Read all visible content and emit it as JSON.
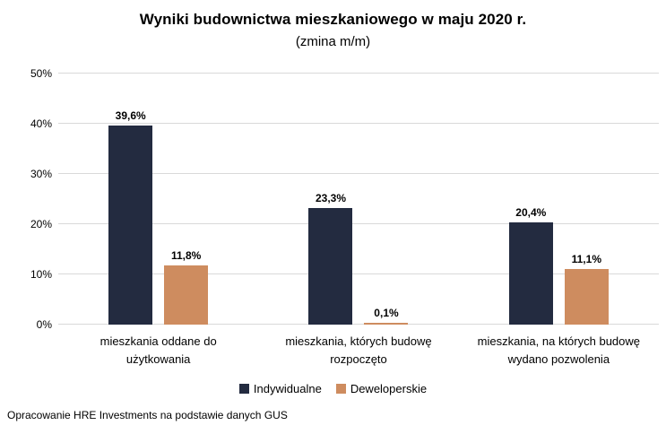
{
  "header": {
    "title": "Wyniki budownictwa mieszkaniowego w maju 2020 r.",
    "subtitle": "(zmina m/m)"
  },
  "footer": {
    "source": "Opracowanie HRE Investments na podstawie danych GUS"
  },
  "colors": {
    "individual": "#232B40",
    "developer": "#CE8C5F",
    "gridline": "#D9D9D9",
    "background": "#FFFFFF",
    "text": "#000000"
  },
  "chart_data": {
    "type": "bar",
    "title": "Wyniki budownictwa mieszkaniowego w maju 2020 r.",
    "subtitle": "(zmina m/m)",
    "categories": [
      "mieszkania oddane do użytkowania",
      "mieszkania, których budowę rozpoczęto",
      "mieszkania, na których budowę wydano pozwolenia"
    ],
    "series": [
      {
        "name": "Indywidualne",
        "color": "#232B40",
        "values": [
          39.6,
          23.3,
          20.4
        ],
        "labels": [
          "39,6%",
          "23,3%",
          "20,4%"
        ]
      },
      {
        "name": "Deweloperskie",
        "color": "#CE8C5F",
        "values": [
          11.8,
          0.1,
          11.1
        ],
        "labels": [
          "11,8%",
          "0,1%",
          "11,1%"
        ]
      }
    ],
    "y_axis": {
      "ticks": [
        "0%",
        "10%",
        "20%",
        "30%",
        "40%",
        "50%"
      ],
      "min": 0,
      "max": 50
    },
    "grid": true,
    "legend_position": "bottom"
  }
}
